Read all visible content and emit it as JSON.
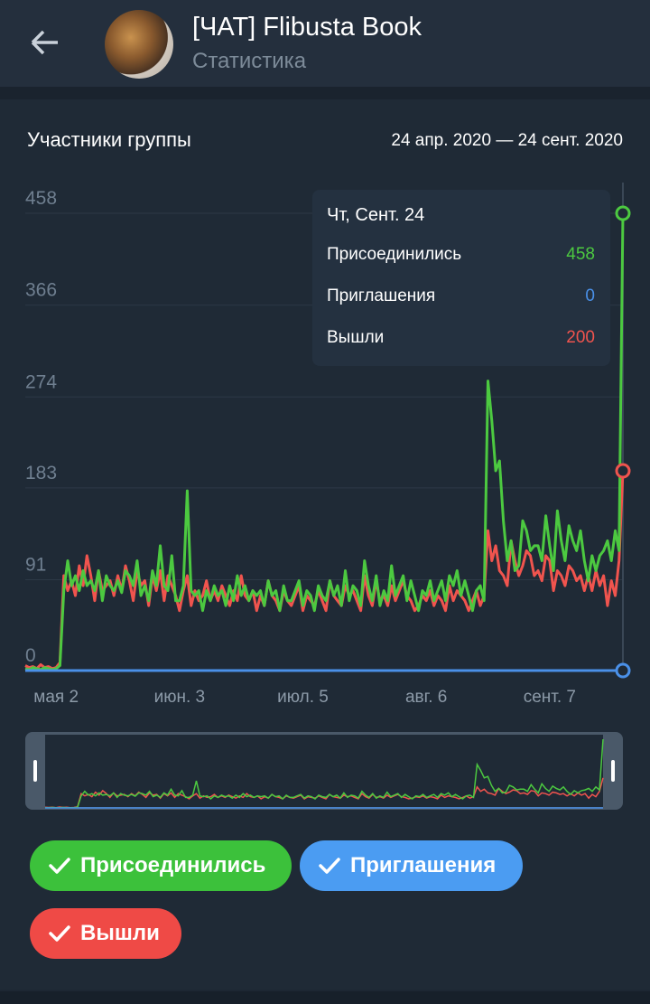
{
  "header": {
    "title": "[ЧАТ] Flibusta Book",
    "subtitle": "Статистика",
    "back_icon": "arrow-left-icon"
  },
  "chart_section": {
    "title": "Участники группы",
    "date_range": "24 апр. 2020 — 24 сент. 2020"
  },
  "tooltip": {
    "date": "Чт, Сент. 24",
    "rows": [
      {
        "label": "Присоединились",
        "value": "458",
        "color": "#4cc940"
      },
      {
        "label": "Приглашения",
        "value": "0",
        "color": "#4a90e8"
      },
      {
        "label": "Вышли",
        "value": "200",
        "color": "#f0544e"
      }
    ]
  },
  "toggles": [
    {
      "label": "Присоединились",
      "color": "#3cc13b",
      "checked": true
    },
    {
      "label": "Приглашения",
      "color": "#4b9cf2",
      "checked": true
    },
    {
      "label": "Вышли",
      "color": "#ef4a46",
      "checked": true
    }
  ],
  "chart_data": {
    "type": "line",
    "title": "Участники группы",
    "ylim": [
      0,
      458
    ],
    "y_ticks": [
      "0",
      "91",
      "183",
      "274",
      "366",
      "458"
    ],
    "x_tick_labels": [
      "мая 2",
      "июн. 3",
      "июл. 5",
      "авг. 6",
      "сент. 7"
    ],
    "x_tick_days": [
      8,
      40,
      72,
      104,
      136
    ],
    "grid": true,
    "colors": {
      "joined": "#4cc940",
      "invited": "#4a90e8",
      "left": "#f0544e"
    },
    "series": [
      {
        "name": "Присоединились",
        "key": "joined",
        "values": [
          2,
          1,
          3,
          2,
          1,
          3,
          2,
          1,
          2,
          5,
          80,
          110,
          85,
          95,
          80,
          100,
          85,
          90,
          80,
          100,
          70,
          95,
          85,
          80,
          90,
          78,
          100,
          95,
          85,
          110,
          75,
          85,
          70,
          100,
          85,
          125,
          85,
          80,
          115,
          70,
          70,
          85,
          180,
          80,
          75,
          80,
          60,
          80,
          70,
          85,
          75,
          80,
          65,
          85,
          70,
          95,
          75,
          85,
          70,
          80,
          75,
          80,
          65,
          90,
          75,
          80,
          60,
          85,
          70,
          70,
          80,
          90,
          65,
          80,
          75,
          60,
          85,
          75,
          70,
          90,
          75,
          85,
          65,
          100,
          70,
          85,
          80,
          65,
          110,
          85,
          70,
          95,
          65,
          80,
          70,
          105,
          75,
          85,
          95,
          70,
          90,
          75,
          60,
          80,
          75,
          90,
          70,
          80,
          90,
          70,
          95,
          85,
          100,
          75,
          90,
          75,
          60,
          80,
          85,
          70,
          290,
          250,
          200,
          210,
          150,
          110,
          130,
          100,
          105,
          150,
          140,
          120,
          125,
          125,
          110,
          155,
          125,
          100,
          160,
          130,
          110,
          145,
          130,
          120,
          140,
          110,
          90,
          115,
          100,
          115,
          120,
          130,
          110,
          140,
          120,
          458
        ]
      },
      {
        "name": "Приглашения",
        "key": "invited",
        "values": [
          0,
          0,
          0,
          0,
          0,
          0,
          0,
          0,
          0,
          0,
          0,
          0,
          0,
          0,
          0,
          0,
          0,
          0,
          0,
          0,
          0,
          0,
          0,
          0,
          0,
          0,
          0,
          0,
          0,
          0,
          0,
          0,
          0,
          0,
          0,
          0,
          0,
          0,
          0,
          0,
          0,
          0,
          0,
          0,
          0,
          0,
          0,
          0,
          0,
          0,
          0,
          0,
          0,
          0,
          0,
          0,
          0,
          0,
          0,
          0,
          0,
          0,
          0,
          0,
          0,
          0,
          0,
          0,
          0,
          0,
          0,
          0,
          0,
          0,
          0,
          0,
          0,
          0,
          0,
          0,
          0,
          0,
          0,
          0,
          0,
          0,
          0,
          0,
          0,
          0,
          0,
          0,
          0,
          0,
          0,
          0,
          0,
          0,
          0,
          0,
          0,
          0,
          0,
          0,
          0,
          0,
          0,
          0,
          0,
          0,
          0,
          0,
          0,
          0,
          0,
          0,
          0,
          0,
          0,
          0,
          0,
          0,
          0,
          0,
          0,
          0,
          0,
          0,
          0,
          0,
          0,
          0,
          0,
          0,
          0,
          0,
          0,
          0,
          0,
          0,
          0,
          0,
          0,
          0,
          0,
          0,
          0,
          0,
          0,
          0,
          0,
          0,
          0,
          0,
          0,
          0
        ]
      },
      {
        "name": "Вышли",
        "key": "left",
        "values": [
          5,
          3,
          4,
          2,
          6,
          3,
          4,
          2,
          3,
          8,
          95,
          80,
          90,
          75,
          105,
          85,
          115,
          95,
          70,
          100,
          80,
          85,
          90,
          75,
          95,
          80,
          105,
          90,
          70,
          100,
          85,
          90,
          65,
          95,
          80,
          100,
          70,
          95,
          85,
          75,
          60,
          80,
          95,
          65,
          80,
          70,
          75,
          90,
          70,
          80,
          70,
          85,
          75,
          65,
          80,
          70,
          95,
          75,
          70,
          80,
          60,
          75,
          65,
          90,
          75,
          70,
          60,
          80,
          70,
          65,
          75,
          85,
          60,
          75,
          70,
          65,
          80,
          70,
          60,
          90,
          75,
          70,
          65,
          85,
          75,
          80,
          70,
          60,
          95,
          75,
          65,
          90,
          70,
          75,
          65,
          85,
          70,
          80,
          90,
          75,
          70,
          60,
          65,
          75,
          70,
          80,
          65,
          75,
          70,
          60,
          85,
          70,
          80,
          75,
          70,
          60,
          70,
          80,
          65,
          75,
          140,
          110,
          125,
          100,
          95,
          85,
          130,
          110,
          95,
          105,
          120,
          115,
          95,
          100,
          90,
          115,
          110,
          80,
          100,
          95,
          85,
          105,
          100,
          90,
          95,
          80,
          95,
          80,
          100,
          85,
          95,
          65,
          90,
          75,
          110,
          200
        ]
      }
    ]
  }
}
